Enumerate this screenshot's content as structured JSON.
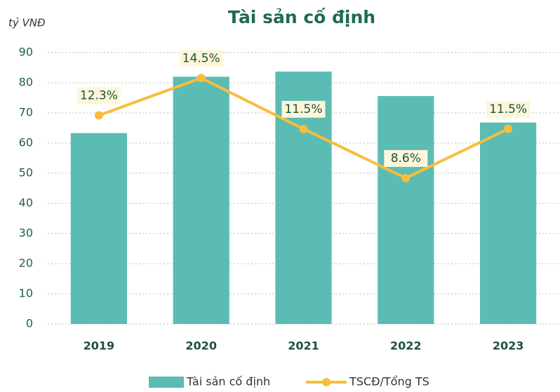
{
  "chart_data": {
    "type": "bar",
    "title": "Tài sản cố định",
    "y_label": "tỷ VNĐ",
    "categories": [
      "2019",
      "2020",
      "2021",
      "2022",
      "2023"
    ],
    "series": [
      {
        "name": "Tài sản cố định",
        "type": "bar",
        "color": "#5bbcb4",
        "values": [
          63.3,
          82,
          83.7,
          75.6,
          66.8
        ]
      },
      {
        "name": "TSCĐ/Tổng TS",
        "type": "line",
        "axis": "y2",
        "color": "#f7be3c",
        "values": [
          12.3,
          14.5,
          11.5,
          8.6,
          11.5
        ],
        "value_labels": [
          "12.3%",
          "14.5%",
          "11.5%",
          "8.6%",
          "11.5%"
        ]
      }
    ],
    "ylim": [
      0,
      90
    ],
    "yticks": [
      0,
      10,
      20,
      30,
      40,
      50,
      60,
      70,
      80,
      90
    ],
    "y2lim": [
      0,
      16
    ],
    "grid": true,
    "legend": "bottom"
  }
}
